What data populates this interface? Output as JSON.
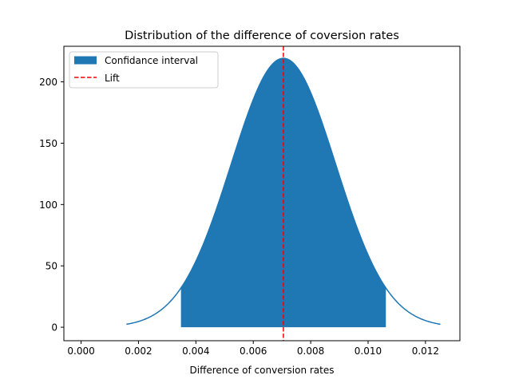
{
  "chart_data": {
    "type": "area",
    "title": "Distribution of the difference of coversion rates",
    "xlabel": "Difference of conversion rates",
    "ylabel": "",
    "xlim": [
      -0.0006,
      0.0132
    ],
    "ylim": [
      -11,
      229
    ],
    "xticks": [
      0.0,
      0.002,
      0.004,
      0.006,
      0.008,
      0.01,
      0.012
    ],
    "xtick_labels": [
      "0.000",
      "0.002",
      "0.004",
      "0.006",
      "0.008",
      "0.010",
      "0.012"
    ],
    "yticks": [
      0,
      50,
      100,
      150,
      200
    ],
    "ytick_labels": [
      "0",
      "50",
      "100",
      "150",
      "200"
    ],
    "grid": false,
    "legend_position": "top-left",
    "distribution": {
      "mean": 0.00705,
      "sd": 0.00182,
      "x_start": 0.00158,
      "x_end": 0.01252
    },
    "confidence_interval": [
      0.00348,
      0.01062
    ],
    "lift": 0.00705,
    "series": [
      {
        "name": "Confidance interval",
        "color": "#1f77b4",
        "kind": "filled-band"
      },
      {
        "name": "Lift",
        "color": "#ff0000",
        "kind": "dashed-vline"
      }
    ],
    "curve_color": "#1f77b4"
  }
}
